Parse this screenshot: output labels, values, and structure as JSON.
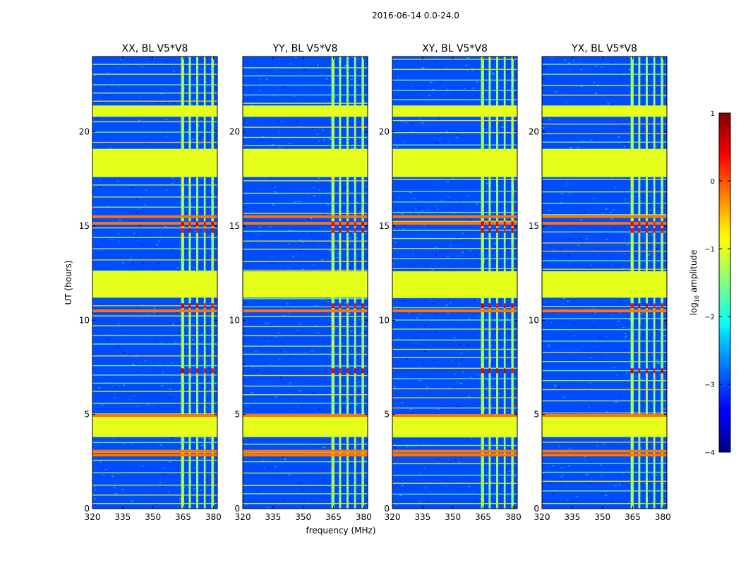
{
  "chart_data": {
    "type": "heatmap",
    "suptitle": "2016-06-14 0.0-24.0",
    "xlabel": "frequency (MHz)",
    "ylabel": "UT (hours)",
    "xlim": [
      320,
      382
    ],
    "ylim": [
      0,
      24
    ],
    "xticks": [
      320,
      335,
      350,
      365,
      380
    ],
    "yticks": [
      0,
      5,
      10,
      15,
      20
    ],
    "panels": [
      {
        "title": "XX, BL V5*V8"
      },
      {
        "title": "YY, BL V5*V8"
      },
      {
        "title": "XY, BL V5*V8"
      },
      {
        "title": "YX, BL V5*V8"
      }
    ],
    "colorbar": {
      "label": "log10 amplitude",
      "label_base": "log",
      "label_sub": "10",
      "label_rest": " amplitude",
      "range": [
        -4,
        1
      ],
      "ticks": [
        "1",
        "0",
        "−1",
        "−2",
        "−3",
        "−4"
      ],
      "colormap": "jet"
    },
    "background_level": -3.0,
    "flagged_level": -1.0,
    "flagged_time_ranges": [
      [
        3.8,
        4.9
      ],
      [
        11.2,
        12.6
      ],
      [
        17.6,
        19.1
      ],
      [
        20.8,
        21.4
      ]
    ],
    "rfi_channels_mhz": [
      [
        364,
        365.5
      ],
      [
        367.8,
        368.8
      ],
      [
        371.5,
        372.5
      ],
      [
        375.3,
        376.2
      ],
      [
        379,
        380.2
      ]
    ],
    "strong_events_hours": [
      2.85,
      3.05,
      4.95,
      10.5,
      15.15,
      15.5
    ]
  }
}
